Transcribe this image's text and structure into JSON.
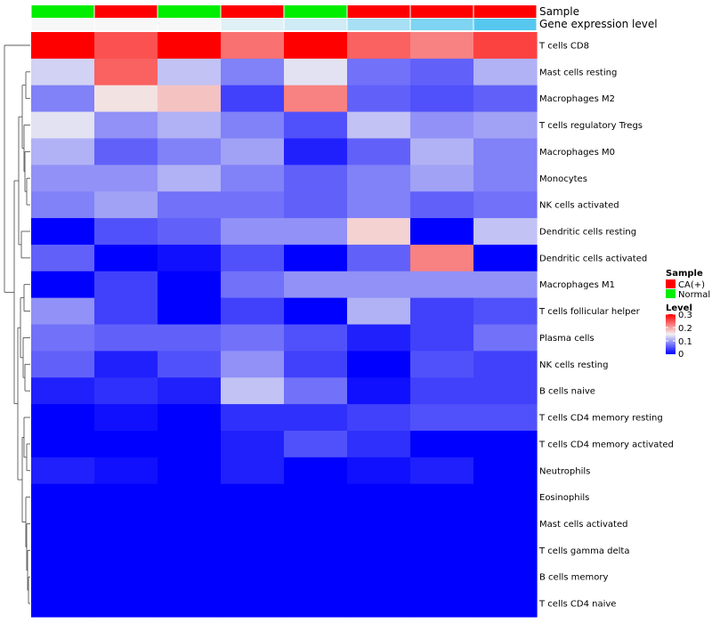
{
  "chart_data": {
    "type": "heatmap",
    "annotation_rows": [
      {
        "name": "Sample",
        "values": [
          "Normal",
          "CA(+)",
          "Normal",
          "CA(+)",
          "Normal",
          "CA(+)",
          "CA(+)",
          "CA(+)"
        ]
      },
      {
        "name": "Gene expression level",
        "values": [
          0.0,
          0.0,
          0.0,
          0.15,
          0.25,
          0.5,
          0.75,
          1.0
        ]
      }
    ],
    "rows": [
      {
        "label": "T cells CD8",
        "values": [
          0.3,
          0.25,
          0.3,
          0.23,
          0.3,
          0.24,
          0.22,
          0.26
        ]
      },
      {
        "label": "Mast cells resting",
        "values": [
          0.13,
          0.24,
          0.12,
          0.08,
          0.14,
          0.07,
          0.06,
          0.11
        ]
      },
      {
        "label": "Macrophages M2",
        "values": [
          0.08,
          0.16,
          0.18,
          0.04,
          0.22,
          0.06,
          0.05,
          0.06
        ]
      },
      {
        "label": "T cells regulatory  Tregs",
        "values": [
          0.14,
          0.09,
          0.11,
          0.08,
          0.05,
          0.12,
          0.09,
          0.1
        ]
      },
      {
        "label": "Macrophages M0",
        "values": [
          0.11,
          0.06,
          0.08,
          0.1,
          0.02,
          0.06,
          0.11,
          0.08
        ]
      },
      {
        "label": "Monocytes",
        "values": [
          0.09,
          0.09,
          0.11,
          0.08,
          0.06,
          0.08,
          0.1,
          0.08
        ]
      },
      {
        "label": "NK cells activated",
        "values": [
          0.08,
          0.1,
          0.07,
          0.07,
          0.06,
          0.08,
          0.06,
          0.07
        ]
      },
      {
        "label": "Dendritic cells resting",
        "values": [
          0.0,
          0.05,
          0.06,
          0.09,
          0.09,
          0.17,
          0.0,
          0.12
        ]
      },
      {
        "label": "Dendritic cells activated",
        "values": [
          0.06,
          0.0,
          0.01,
          0.05,
          0.0,
          0.06,
          0.22,
          0.0
        ]
      },
      {
        "label": "Macrophages M1",
        "values": [
          0.0,
          0.04,
          0.0,
          0.07,
          0.09,
          0.09,
          0.09,
          0.09
        ]
      },
      {
        "label": "T cells follicular helper",
        "values": [
          0.09,
          0.04,
          0.0,
          0.04,
          0.0,
          0.11,
          0.04,
          0.05
        ]
      },
      {
        "label": "Plasma cells",
        "values": [
          0.07,
          0.06,
          0.06,
          0.07,
          0.05,
          0.02,
          0.04,
          0.07
        ]
      },
      {
        "label": "NK cells resting",
        "values": [
          0.06,
          0.02,
          0.05,
          0.09,
          0.04,
          0.0,
          0.05,
          0.04
        ]
      },
      {
        "label": "B cells naive",
        "values": [
          0.02,
          0.03,
          0.02,
          0.12,
          0.07,
          0.01,
          0.04,
          0.04
        ]
      },
      {
        "label": "T cells CD4 memory resting",
        "values": [
          0.0,
          0.01,
          0.0,
          0.03,
          0.03,
          0.04,
          0.05,
          0.05
        ]
      },
      {
        "label": "T cells CD4 memory activated",
        "values": [
          0.0,
          0.0,
          0.0,
          0.02,
          0.05,
          0.03,
          0.0,
          0.0
        ]
      },
      {
        "label": "Neutrophils",
        "values": [
          0.02,
          0.01,
          0.0,
          0.02,
          0.0,
          0.01,
          0.02,
          0.0
        ]
      },
      {
        "label": "Eosinophils",
        "values": [
          0,
          0,
          0,
          0,
          0,
          0,
          0,
          0
        ]
      },
      {
        "label": "Mast cells activated",
        "values": [
          0,
          0,
          0,
          0,
          0,
          0,
          0,
          0
        ]
      },
      {
        "label": "T cells gamma delta",
        "values": [
          0,
          0,
          0,
          0,
          0,
          0,
          0,
          0
        ]
      },
      {
        "label": "B cells memory",
        "values": [
          0,
          0,
          0,
          0,
          0,
          0,
          0,
          0
        ]
      },
      {
        "label": "T cells CD4 naive",
        "values": [
          0,
          0,
          0,
          0,
          0,
          0,
          0,
          0
        ]
      }
    ],
    "color_scale": {
      "min": 0,
      "max": 0.3,
      "low": "#0000ff",
      "mid": "#f2f2f2",
      "high": "#ff0000",
      "midpoint": 0.15
    },
    "sample_colors": {
      "CA(+)": "#ff0000",
      "Normal": "#00ee00"
    },
    "expression_colors": {
      "low": "#f7f7f7",
      "high": "#56c8f0"
    },
    "legend": {
      "sample_title": "Sample",
      "sample_items": [
        "CA(+)",
        "Normal"
      ],
      "level_title": "Level",
      "level_ticks": [
        "0.3",
        "0.2",
        "0.1",
        "0"
      ],
      "placement": "right"
    }
  }
}
